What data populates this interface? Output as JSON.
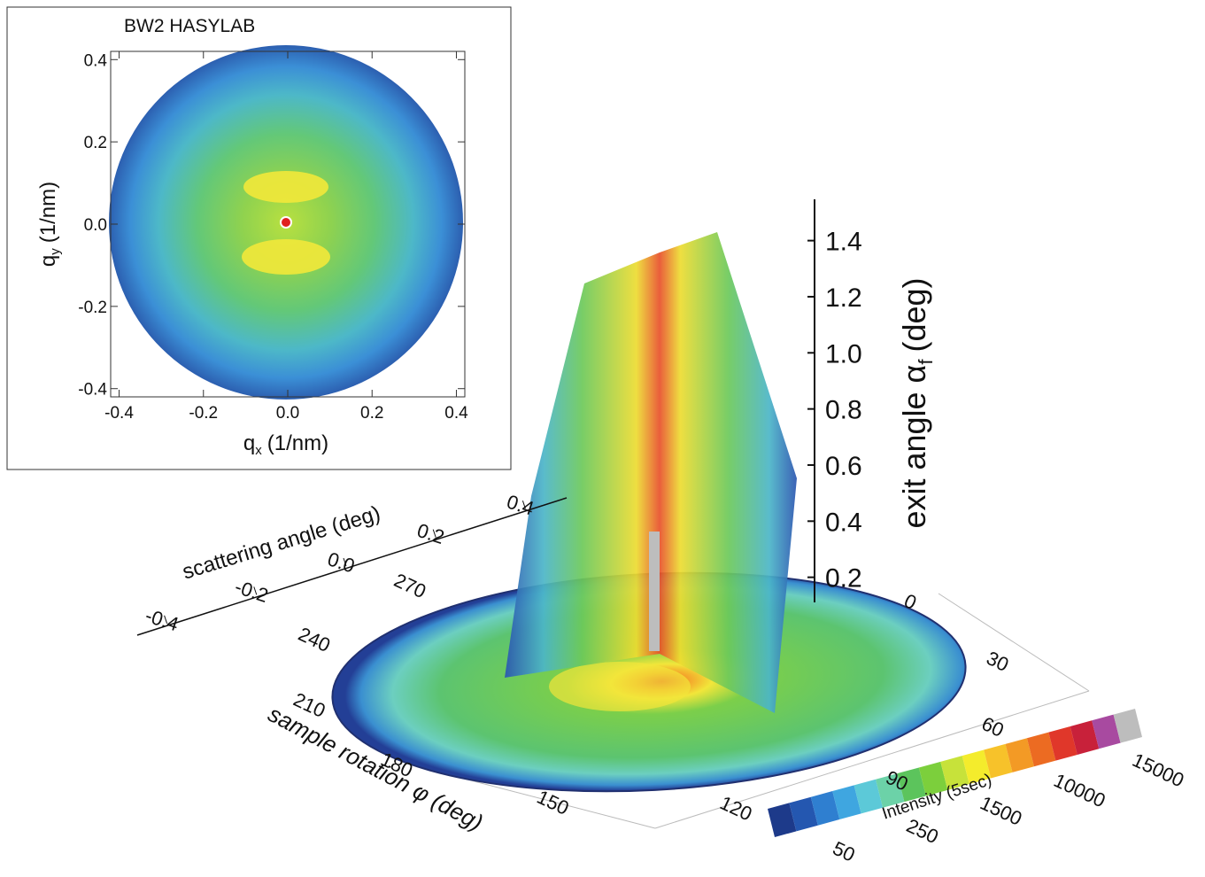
{
  "chart_data": [
    {
      "type": "heatmap",
      "title": "BW2 HASYLAB",
      "xlabel": {
        "text": "q",
        "sub": "x",
        "unit": "(1/nm)"
      },
      "ylabel": {
        "text": "q",
        "sub": "y",
        "unit": "(1/nm)"
      },
      "xlim": [
        -0.42,
        0.42
      ],
      "ylim": [
        -0.42,
        0.42
      ],
      "xticks": [
        -0.4,
        -0.2,
        {
          "value": 0,
          "label": "0.0"
        },
        0.2,
        0.4
      ],
      "yticks": [
        -0.4,
        -0.2,
        {
          "value": 0,
          "label": "0.0"
        },
        0.2,
        0.4
      ]
    },
    {
      "type": "surface3d",
      "zlabel": {
        "text": "exit angle α",
        "sub": "f",
        "unit": "(deg)"
      },
      "zticks": [
        0.2,
        0.4,
        0.6,
        0.8,
        {
          "value": 1,
          "label": "1.0"
        },
        1.2,
        1.4
      ],
      "ylabel": "scattering angle (deg)",
      "yticks": [
        -0.4,
        -0.2,
        {
          "value": 0,
          "label": "0.0"
        },
        0.2,
        0.4
      ],
      "xlabel": "sample rotation φ (deg)",
      "xticks": [
        0,
        30,
        60,
        90,
        120,
        150,
        180,
        210,
        240,
        270
      ],
      "colorbar": {
        "label": "Intensity (5sec)",
        "ticks": [
          50,
          250,
          1500,
          10000,
          15000
        ],
        "colors": [
          "#1d3a8a",
          "#2457b0",
          "#2f7fd0",
          "#3fa6e0",
          "#5cc9d8",
          "#6cd2a8",
          "#5cc45c",
          "#7ccf3c",
          "#c7e23a",
          "#f4ec2c",
          "#f7c22a",
          "#f39a25",
          "#ec6b22",
          "#e0372a",
          "#c8213a",
          "#a84aa0",
          "#bdbdbd"
        ]
      }
    }
  ]
}
